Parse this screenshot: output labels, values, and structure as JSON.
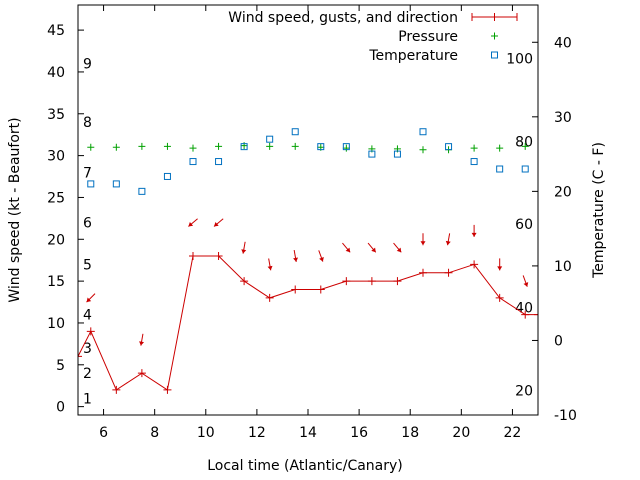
{
  "chart_data": {
    "type": "line",
    "xlabel": "Local time (Atlantic/Canary)",
    "ylabel": "Wind speed (kt - Beaufort)",
    "y2label": "Temperature (C - F)",
    "xlim": [
      5,
      23
    ],
    "ylim": [
      -1,
      48
    ],
    "y2lim": [
      -10,
      45
    ],
    "x_ticks": [
      6,
      8,
      10,
      12,
      14,
      16,
      18,
      20,
      22
    ],
    "y_ticks": [
      0,
      5,
      10,
      15,
      20,
      25,
      30,
      35,
      40,
      45
    ],
    "y2_ticks": [
      -10,
      0,
      10,
      20,
      30,
      40
    ],
    "beaufort_labels": [
      {
        "label": "1",
        "kt": 1
      },
      {
        "label": "2",
        "kt": 4
      },
      {
        "label": "3",
        "kt": 7
      },
      {
        "label": "4",
        "kt": 11
      },
      {
        "label": "5",
        "kt": 17
      },
      {
        "label": "6",
        "kt": 22
      },
      {
        "label": "7",
        "kt": 28
      },
      {
        "label": "8",
        "kt": 34
      },
      {
        "label": "9",
        "kt": 41
      }
    ],
    "fahrenheit_labels": [
      {
        "label": "20",
        "celsius": -6.7
      },
      {
        "label": "40",
        "celsius": 4.4
      },
      {
        "label": "60",
        "celsius": 15.6
      },
      {
        "label": "80",
        "celsius": 26.7
      },
      {
        "label": "100",
        "celsius": 37.8
      }
    ],
    "series": [
      {
        "name": "Wind speed, gusts, and direction",
        "color": "#cc0000",
        "x": [
          5,
          5.5,
          6.5,
          7.5,
          8.5,
          9.5,
          10.5,
          11.5,
          12.5,
          13.5,
          14.5,
          15.5,
          16.5,
          17.5,
          18.5,
          19.5,
          20.5,
          21.5,
          22.5,
          23
        ],
        "y": [
          6,
          9,
          2,
          4,
          2,
          18,
          18,
          15,
          13,
          14,
          14,
          15,
          15,
          15,
          16,
          16,
          17,
          13,
          11,
          11
        ]
      },
      {
        "name": "Pressure",
        "color": "#00a000",
        "x": [
          5.5,
          6.5,
          7.5,
          8.5,
          9.5,
          10.5,
          11.5,
          12.5,
          13.5,
          14.5,
          15.5,
          16.5,
          17.5,
          18.5,
          19.5,
          20.5,
          21.5,
          22.5
        ],
        "y": [
          31,
          31,
          31.1,
          31.1,
          30.9,
          31.1,
          31.2,
          31.1,
          31.1,
          31,
          30.9,
          30.8,
          30.8,
          30.7,
          30.7,
          30.9,
          30.9,
          31.1
        ]
      },
      {
        "name": "Temperature",
        "color": "#0070c0",
        "axis": "y2",
        "x": [
          5.5,
          6.5,
          7.5,
          8.5,
          9.5,
          10.5,
          11.5,
          12.5,
          13.5,
          14.5,
          15.5,
          16.5,
          17.5,
          18.5,
          19.5,
          20.5,
          21.5,
          22.5
        ],
        "y": [
          21,
          21,
          20,
          22,
          24,
          24,
          26,
          27,
          28,
          26,
          26,
          25,
          25,
          28,
          26,
          24,
          23,
          23
        ]
      }
    ],
    "wind_arrows": [
      {
        "x": 5.5,
        "y": 13,
        "angle": 135
      },
      {
        "x": 7.5,
        "y": 8,
        "angle": 100
      },
      {
        "x": 9.5,
        "y": 22,
        "angle": 140
      },
      {
        "x": 10.5,
        "y": 22,
        "angle": 140
      },
      {
        "x": 11.5,
        "y": 19,
        "angle": 100
      },
      {
        "x": 12.5,
        "y": 17,
        "angle": 80
      },
      {
        "x": 13.5,
        "y": 18,
        "angle": 80
      },
      {
        "x": 14.5,
        "y": 18,
        "angle": 70
      },
      {
        "x": 15.5,
        "y": 19,
        "angle": 50
      },
      {
        "x": 16.5,
        "y": 19,
        "angle": 50
      },
      {
        "x": 17.5,
        "y": 19,
        "angle": 50
      },
      {
        "x": 18.5,
        "y": 20,
        "angle": 90
      },
      {
        "x": 19.5,
        "y": 20,
        "angle": 100
      },
      {
        "x": 20.5,
        "y": 21,
        "angle": 90
      },
      {
        "x": 21.5,
        "y": 17,
        "angle": 90
      },
      {
        "x": 22.5,
        "y": 15,
        "angle": 70
      }
    ]
  }
}
